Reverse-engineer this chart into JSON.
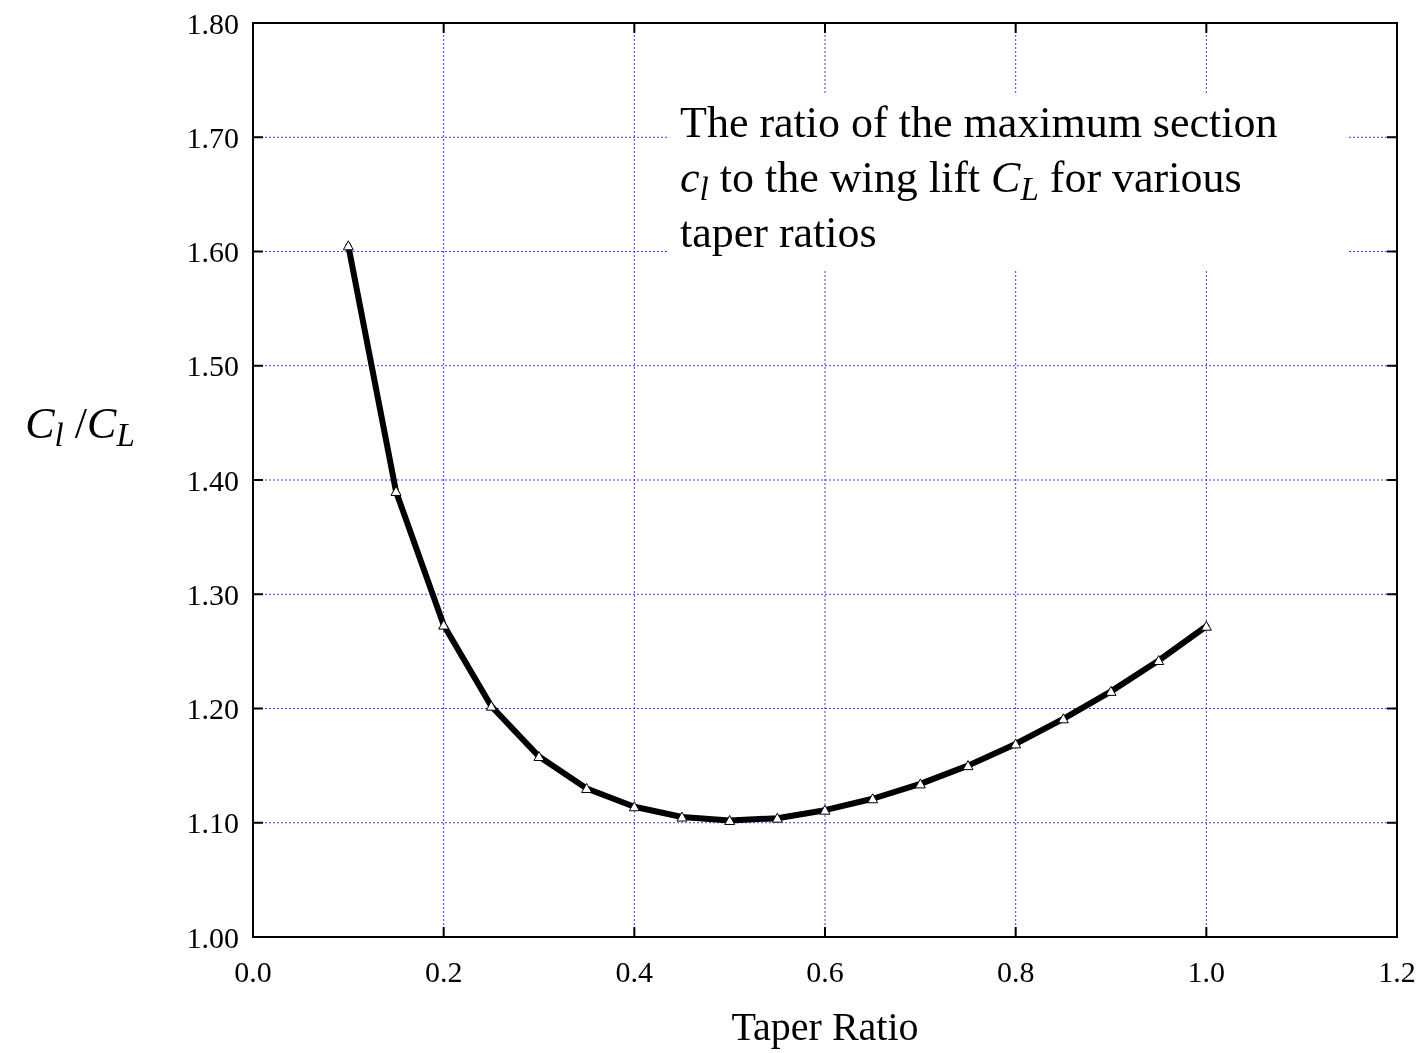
{
  "chart_data": {
    "type": "line",
    "xlabel": "Taper Ratio",
    "ylabel": "C$_{l}$ /C$_{L}$",
    "annotations": [
      "The ratio of the maximum section c$_{l}$ to the wing lift C$_{L}$ for various taper ratios"
    ],
    "x": [
      0.1,
      0.15,
      0.2,
      0.25,
      0.3,
      0.35,
      0.4,
      0.45,
      0.5,
      0.55,
      0.6,
      0.65,
      0.7,
      0.75,
      0.8,
      0.85,
      0.9,
      0.95,
      1.0
    ],
    "series": [
      {
        "color": "#000000",
        "values": [
          1.605,
          1.39,
          1.273,
          1.202,
          1.158,
          1.13,
          1.114,
          1.105,
          1.102,
          1.104,
          1.111,
          1.121,
          1.134,
          1.15,
          1.169,
          1.191,
          1.215,
          1.242,
          1.272
        ]
      }
    ],
    "xlim": [
      0,
      1.2
    ],
    "ylim": [
      1,
      1.8
    ],
    "xticks": [
      {
        "value": 0,
        "label": "0.0"
      },
      0.2,
      0.4,
      0.6,
      0.8,
      {
        "value": 1,
        "label": "1.0"
      },
      1.2
    ],
    "yticks": [
      {
        "value": 1,
        "label": "1.00"
      },
      {
        "value": 1.1,
        "label": "1.10"
      },
      {
        "value": 1.2,
        "label": "1.20"
      },
      {
        "value": 1.3,
        "label": "1.30"
      },
      {
        "value": 1.4,
        "label": "1.40"
      },
      {
        "value": 1.5,
        "label": "1.50"
      },
      {
        "value": 1.6,
        "label": "1.60"
      },
      {
        "value": 1.7,
        "label": "1.70"
      },
      {
        "value": 1.8,
        "label": "1.80"
      }
    ],
    "grid": true,
    "marker": "triangle",
    "line_style": "solid"
  }
}
